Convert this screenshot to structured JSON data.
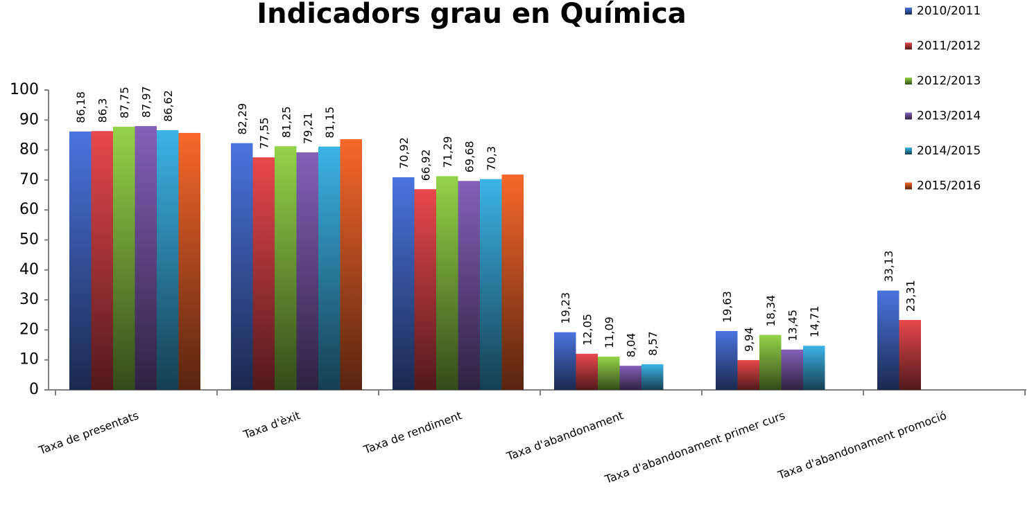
{
  "chart_data": {
    "type": "bar",
    "title": "Indicadors grau en Química",
    "categories": [
      "Taxa de presentats",
      "Taxa d'èxit",
      "Taxa de rendiment",
      "Taxa d'abandonament",
      "Taxa d'abandonament primer curs",
      "Taxa d'abandonament promoció"
    ],
    "series": [
      {
        "name": "2010/2011",
        "color": "#4a74de",
        "values": [
          86.18,
          82.29,
          70.92,
          19.23,
          19.63,
          33.13
        ],
        "value_labels": [
          "86,18",
          "82,29",
          "70,92",
          "19,23",
          "19,63",
          "33,13"
        ]
      },
      {
        "name": "2011/2012",
        "color": "#e8484c",
        "values": [
          86.3,
          77.55,
          66.92,
          12.05,
          9.94,
          23.31
        ],
        "value_labels": [
          "86,3",
          "77,55",
          "66,92",
          "12,05",
          "9,94",
          "23,31"
        ]
      },
      {
        "name": "2012/2013",
        "color": "#94d448",
        "values": [
          87.75,
          81.25,
          71.29,
          11.09,
          18.34,
          null
        ],
        "value_labels": [
          "87,75",
          "81,25",
          "71,29",
          "11,09",
          "18,34",
          null
        ]
      },
      {
        "name": "2013/2014",
        "color": "#8460b8",
        "values": [
          87.97,
          79.21,
          69.68,
          8.04,
          13.45,
          null
        ],
        "value_labels": [
          "87,97",
          "79,21",
          "69,68",
          "8,04",
          "13,45",
          null
        ]
      },
      {
        "name": "2014/2015",
        "color": "#3cb4e6",
        "values": [
          86.62,
          81.15,
          70.3,
          8.57,
          14.71,
          null
        ],
        "value_labels": [
          "86,62",
          "81,15",
          "70,3",
          "8,57",
          "14,71",
          null
        ]
      },
      {
        "name": "2015/2016",
        "color": "#f8682a",
        "values": [
          85.7,
          83.6,
          71.8,
          null,
          null,
          null
        ]
      }
    ],
    "ylim": [
      0,
      100
    ],
    "yticks": [
      0,
      10,
      20,
      30,
      40,
      50,
      60,
      70,
      80,
      90,
      100
    ],
    "grid": false,
    "legend": "right"
  }
}
